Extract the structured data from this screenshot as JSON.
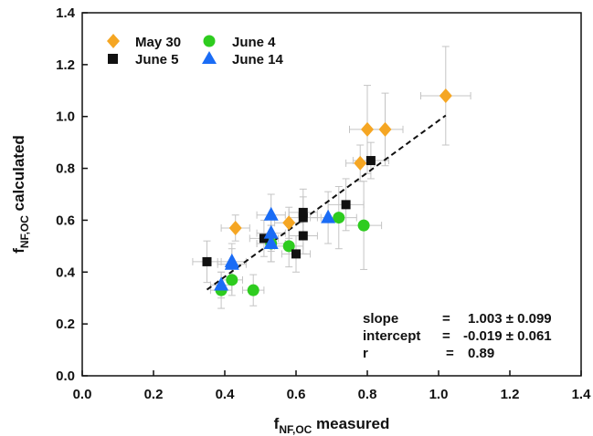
{
  "chart_data": {
    "type": "scatter",
    "xlabel": {
      "main": "f",
      "sub": "NF,OC",
      "suffix": " measured"
    },
    "ylabel": {
      "main": "f",
      "sub": "NF,OC",
      "suffix": " calculated"
    },
    "xlim": [
      0,
      1.4
    ],
    "ylim": [
      0,
      1.4
    ],
    "xticks": [
      "0.0",
      "0.2",
      "0.4",
      "0.6",
      "0.8",
      "1.0",
      "1.2",
      "1.4"
    ],
    "yticks": [
      "0.0",
      "0.2",
      "0.4",
      "0.6",
      "0.8",
      "1.0",
      "1.2",
      "1.4"
    ],
    "grid": false,
    "legend_position": "top-left",
    "series": [
      {
        "name": "May 30",
        "marker": "diamond",
        "color": "#f5a623",
        "points": [
          {
            "x": 0.43,
            "y": 0.57,
            "xerr": 0.04,
            "yerr": 0.05
          },
          {
            "x": 0.58,
            "y": 0.59,
            "xerr": 0.04,
            "yerr": 0.06
          },
          {
            "x": 0.78,
            "y": 0.82,
            "xerr": 0.04,
            "yerr": 0.07
          },
          {
            "x": 0.8,
            "y": 0.95,
            "xerr": 0.05,
            "yerr": 0.17
          },
          {
            "x": 0.85,
            "y": 0.95,
            "xerr": 0.05,
            "yerr": 0.14
          },
          {
            "x": 1.02,
            "y": 1.08,
            "xerr": 0.07,
            "yerr": 0.19
          }
        ]
      },
      {
        "name": "June 4",
        "marker": "circle",
        "color": "#2ecc1f",
        "points": [
          {
            "x": 0.39,
            "y": 0.33,
            "xerr": 0.03,
            "yerr": 0.07
          },
          {
            "x": 0.42,
            "y": 0.37,
            "xerr": 0.03,
            "yerr": 0.06
          },
          {
            "x": 0.48,
            "y": 0.33,
            "xerr": 0.03,
            "yerr": 0.06
          },
          {
            "x": 0.53,
            "y": 0.51,
            "xerr": 0.04,
            "yerr": 0.07
          },
          {
            "x": 0.58,
            "y": 0.5,
            "xerr": 0.04,
            "yerr": 0.08
          },
          {
            "x": 0.72,
            "y": 0.61,
            "xerr": 0.05,
            "yerr": 0.12
          },
          {
            "x": 0.79,
            "y": 0.58,
            "xerr": 0.05,
            "yerr": 0.17
          }
        ]
      },
      {
        "name": "June 5",
        "marker": "square",
        "color": "#111111",
        "points": [
          {
            "x": 0.35,
            "y": 0.44,
            "xerr": 0.04,
            "yerr": 0.08
          },
          {
            "x": 0.51,
            "y": 0.53,
            "xerr": 0.04,
            "yerr": 0.07
          },
          {
            "x": 0.6,
            "y": 0.47,
            "xerr": 0.04,
            "yerr": 0.07
          },
          {
            "x": 0.62,
            "y": 0.54,
            "xerr": 0.04,
            "yerr": 0.07
          },
          {
            "x": 0.62,
            "y": 0.61,
            "xerr": 0.04,
            "yerr": 0.08
          },
          {
            "x": 0.62,
            "y": 0.63,
            "xerr": 0.04,
            "yerr": 0.09
          },
          {
            "x": 0.74,
            "y": 0.66,
            "xerr": 0.05,
            "yerr": 0.1
          },
          {
            "x": 0.81,
            "y": 0.83,
            "xerr": 0.05,
            "yerr": 0.07
          }
        ]
      },
      {
        "name": "June 14",
        "marker": "triangle",
        "color": "#1a6cf5",
        "points": [
          {
            "x": 0.39,
            "y": 0.35,
            "xerr": 0.03,
            "yerr": 0.05
          },
          {
            "x": 0.42,
            "y": 0.43,
            "xerr": 0.04,
            "yerr": 0.06
          },
          {
            "x": 0.42,
            "y": 0.44,
            "xerr": 0.04,
            "yerr": 0.07
          },
          {
            "x": 0.53,
            "y": 0.51,
            "xerr": 0.04,
            "yerr": 0.07
          },
          {
            "x": 0.53,
            "y": 0.55,
            "xerr": 0.04,
            "yerr": 0.07
          },
          {
            "x": 0.53,
            "y": 0.62,
            "xerr": 0.04,
            "yerr": 0.08
          },
          {
            "x": 0.69,
            "y": 0.61,
            "xerr": 0.05,
            "yerr": 0.1
          }
        ]
      }
    ],
    "fit_line": {
      "style": "dashed",
      "x": [
        0.35,
        1.02
      ],
      "y": [
        0.332,
        1.004
      ]
    },
    "annotations": [
      {
        "label": "slope",
        "eq": "=",
        "value": "1.003 ± 0.099"
      },
      {
        "label": "intercept",
        "eq": "=",
        "value": "-0.019 ± 0.061"
      },
      {
        "label": "r",
        "eq": "=",
        "value": "0.89"
      }
    ]
  }
}
